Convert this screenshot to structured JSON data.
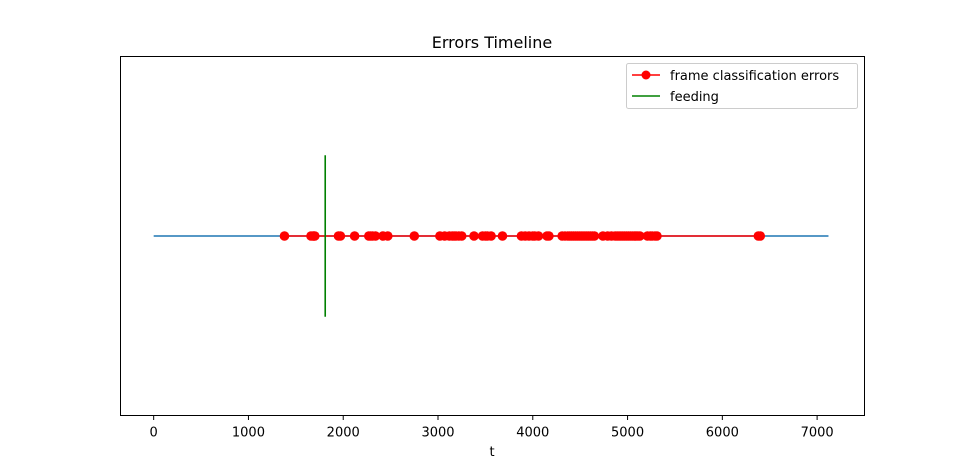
{
  "chart_data": {
    "type": "line",
    "title": "Errors Timeline",
    "xlabel": "t",
    "ylabel": "",
    "xlim": [
      -350,
      7500
    ],
    "ylim": [
      -1,
      1
    ],
    "xticks": [
      0,
      1000,
      2000,
      3000,
      4000,
      5000,
      6000,
      7000
    ],
    "xtick_labels": [
      "0",
      "1000",
      "2000",
      "3000",
      "4000",
      "5000",
      "6000",
      "7000"
    ],
    "yticks_visible": false,
    "grid": false,
    "legend_position": "top-right",
    "baseline": {
      "name": "",
      "color": "#1f77b4",
      "x": [
        0,
        7120
      ],
      "y": [
        0,
        0
      ]
    },
    "series": [
      {
        "name": "frame classification errors",
        "color": "#ff0000",
        "marker": "circle",
        "y": 0,
        "x": [
          1380,
          1660,
          1680,
          1690,
          1700,
          1950,
          1970,
          2120,
          2270,
          2290,
          2310,
          2340,
          2420,
          2470,
          2750,
          3020,
          3070,
          3120,
          3150,
          3170,
          3190,
          3220,
          3250,
          3380,
          3470,
          3500,
          3520,
          3560,
          3680,
          3880,
          3920,
          3960,
          4000,
          4020,
          4060,
          4150,
          4170,
          4310,
          4340,
          4370,
          4390,
          4410,
          4430,
          4450,
          4470,
          4490,
          4510,
          4530,
          4550,
          4570,
          4590,
          4610,
          4630,
          4650,
          4740,
          4790,
          4830,
          4870,
          4890,
          4910,
          4930,
          4950,
          4970,
          4990,
          5010,
          5030,
          5050,
          5070,
          5090,
          5110,
          5130,
          5210,
          5240,
          5260,
          5290,
          5310,
          6380,
          6400
        ]
      }
    ],
    "vlines": [
      {
        "name": "feeding",
        "color": "#008000",
        "x": 1810,
        "y_range": [
          -0.45,
          0.45
        ]
      }
    ]
  }
}
